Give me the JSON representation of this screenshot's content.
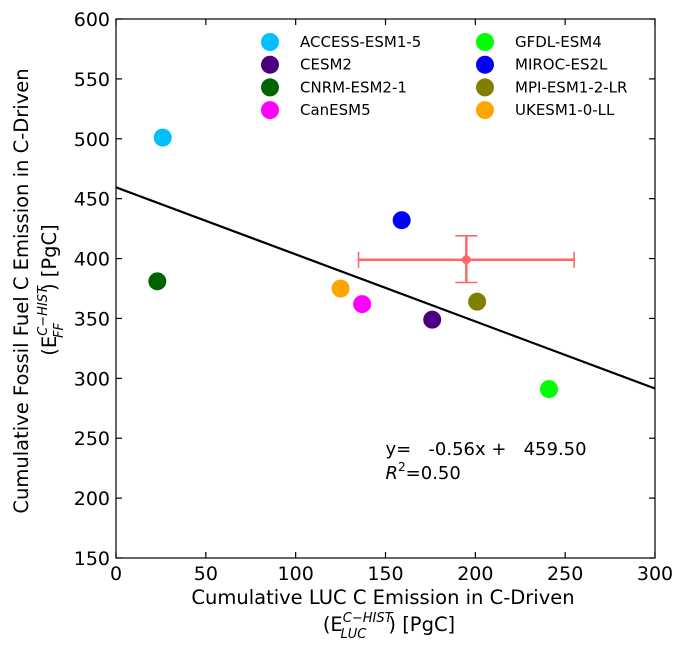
{
  "chart_data": {
    "type": "scatter",
    "xlabel_line1": "Cumulative LUC C Emission in C-Driven",
    "xlabel_math_base": "(E",
    "xlabel_math_sub": "LUC",
    "xlabel_math_sup": "C−HIST",
    "xlabel_math_rest": ") [PgC]",
    "ylabel_line1": "Cumulative Fossil Fuel C Emission in C-Driven",
    "ylabel_math_base": "(E",
    "ylabel_math_sub": "FF",
    "ylabel_math_sup": "C−HIST",
    "ylabel_math_rest": ") [PgC]",
    "xlim": [
      0,
      300
    ],
    "ylim": [
      150,
      600
    ],
    "xticks": [
      0,
      50,
      100,
      150,
      200,
      250,
      300
    ],
    "yticks": [
      150,
      200,
      250,
      300,
      350,
      400,
      450,
      500,
      550,
      600
    ],
    "grid": false,
    "legend_position": "top-right",
    "series": [
      {
        "name": "ACCESS-ESM1-5",
        "color": "#00BFFF",
        "x": 26,
        "y": 501
      },
      {
        "name": "CESM2",
        "color": "#4B0082",
        "x": 176,
        "y": 349
      },
      {
        "name": "CNRM-ESM2-1",
        "color": "#006400",
        "x": 23,
        "y": 381
      },
      {
        "name": "CanESM5",
        "color": "#FF00FF",
        "x": 137,
        "y": 362
      },
      {
        "name": "GFDL-ESM4",
        "color": "#00FF00",
        "x": 241,
        "y": 291
      },
      {
        "name": "MIROC-ES2L",
        "color": "#0000FF",
        "x": 159,
        "y": 432
      },
      {
        "name": "MPI-ESM1-2-LR",
        "color": "#808000",
        "x": 201,
        "y": 364
      },
      {
        "name": "UKESM1-0-LL",
        "color": "#FFA500",
        "x": 125,
        "y": 375
      }
    ],
    "regression": {
      "slope": -0.56,
      "intercept": 459.5,
      "color": "#000000",
      "equation_text": "y=   -0.56x +   459.50",
      "r2_label": "R",
      "r2_sup": "2",
      "r2_value": "=0.50",
      "annotation_x": 150,
      "annotation_y": 236
    },
    "observation": {
      "color": "#FF6666",
      "x": 195,
      "y": 399,
      "x_err": [
        135,
        255
      ],
      "y_err": [
        380,
        419
      ]
    }
  }
}
